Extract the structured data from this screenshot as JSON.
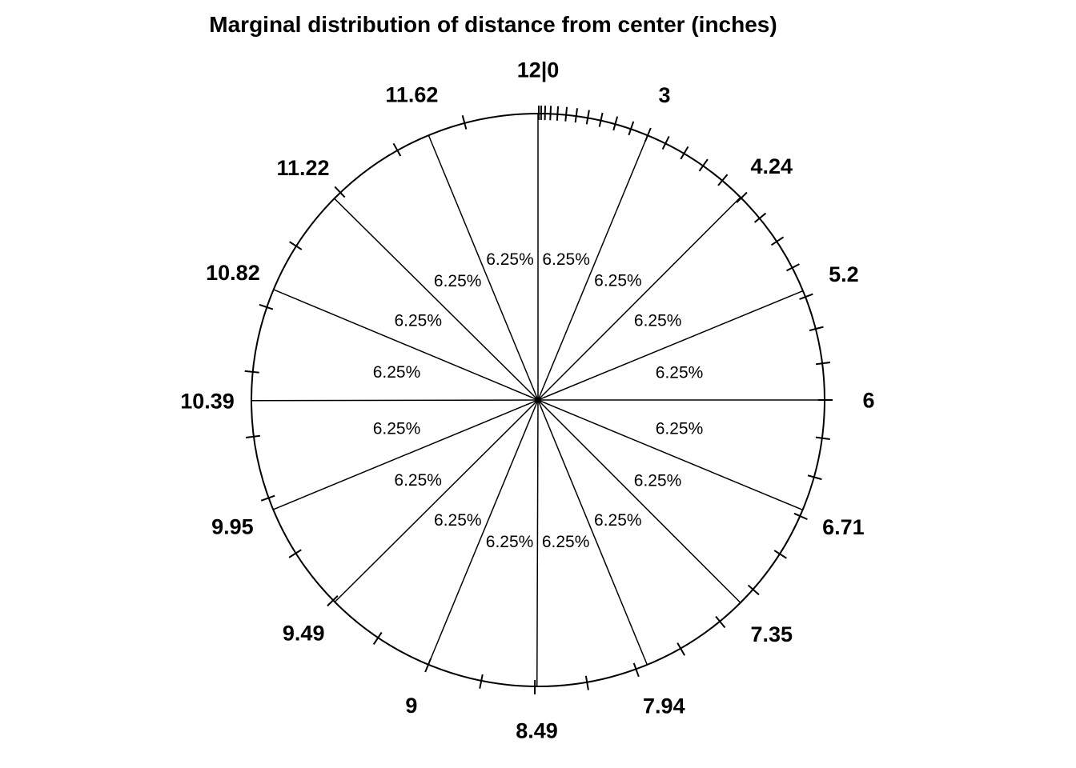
{
  "page": {
    "background_color": "#ffffff",
    "stroke_color": "#000000"
  },
  "chart_data": {
    "type": "pie",
    "title": "Marginal distribution of distance from center (inches)",
    "units": "inches",
    "boundary_labels": [
      "12|0",
      "3",
      "4.24",
      "5.2",
      "6",
      "6.71",
      "7.35",
      "7.94",
      "8.49",
      "9",
      "9.49",
      "9.95",
      "10.39",
      "10.82",
      "11.22",
      "11.62"
    ],
    "boundary_distances": [
      0,
      3,
      4.24,
      5.2,
      6,
      6.71,
      7.35,
      7.94,
      8.49,
      9,
      9.49,
      9.95,
      10.39,
      10.82,
      11.22,
      11.62,
      12
    ],
    "slice_values_percent": [
      6.25,
      6.25,
      6.25,
      6.25,
      6.25,
      6.25,
      6.25,
      6.25,
      6.25,
      6.25,
      6.25,
      6.25,
      6.25,
      6.25,
      6.25,
      6.25
    ],
    "slice_labels": [
      "6.25%",
      "6.25%",
      "6.25%",
      "6.25%",
      "6.25%",
      "6.25%",
      "6.25%",
      "6.25%",
      "6.25%",
      "6.25%",
      "6.25%",
      "6.25%",
      "6.25%",
      "6.25%",
      "6.25%",
      "6.25%"
    ],
    "max_distance": 12,
    "tick_step": 0.25,
    "angle_encoding": "angle proportional to distance squared (equal-area rings), 0 at top, clockwise",
    "legend": "none",
    "grid": "radial spokes at slice boundaries, tick marks on circumference"
  }
}
